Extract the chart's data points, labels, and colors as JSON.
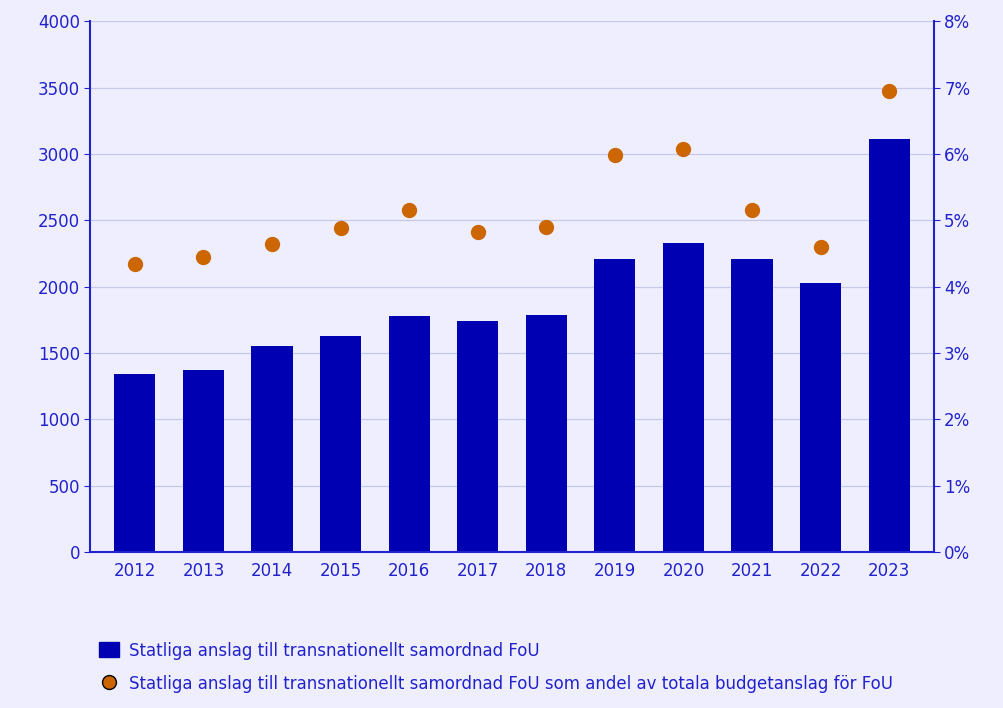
{
  "years": [
    2012,
    2013,
    2014,
    2015,
    2016,
    2017,
    2018,
    2019,
    2020,
    2021,
    2022,
    2023
  ],
  "bar_values": [
    1340,
    1370,
    1550,
    1630,
    1780,
    1740,
    1790,
    2210,
    2330,
    2210,
    2030,
    3110
  ],
  "dot_values_pct": [
    0.0435,
    0.0445,
    0.0465,
    0.0488,
    0.0515,
    0.0483,
    0.049,
    0.0598,
    0.0608,
    0.0515,
    0.046,
    0.0695
  ],
  "bar_color": "#0000b3",
  "dot_color": "#cc6600",
  "bar_label": "Statliga anslag till transnationellt samordnad FoU",
  "dot_label": "Statliga anslag till transnationellt samordnad FoU som andel av totala budgetanslag för FoU",
  "ylim_left": [
    0,
    4000
  ],
  "ylim_right": [
    0,
    0.08
  ],
  "yticks_left": [
    0,
    500,
    1000,
    1500,
    2000,
    2500,
    3000,
    3500,
    4000
  ],
  "yticks_right": [
    0,
    0.01,
    0.02,
    0.03,
    0.04,
    0.05,
    0.06,
    0.07,
    0.08
  ],
  "background_color": "#eeeeff",
  "plot_bg_color": "#eeeeff",
  "grid_color": "#c8c8e8",
  "axis_color": "#2222cc",
  "label_fontsize": 12,
  "tick_fontsize": 12
}
